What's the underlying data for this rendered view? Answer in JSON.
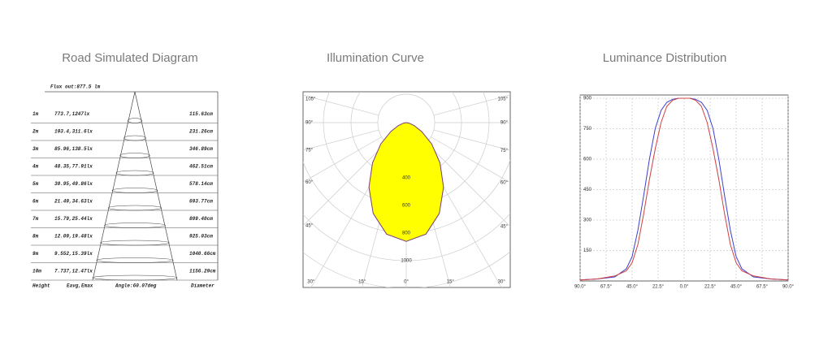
{
  "road": {
    "title": "Road Simulated Diagram",
    "flux": "Flux out:877.5 lm",
    "rows": [
      [
        "1m",
        "773.7,1247lx",
        "115.63cm"
      ],
      [
        "2m",
        "193.4,311.6lx",
        "231.26cm"
      ],
      [
        "3m",
        "85.96,138.5lx",
        "346.89cm"
      ],
      [
        "4m",
        "48.35,77.91lx",
        "462.51cm"
      ],
      [
        "5m",
        "30.95,49.86lx",
        "578.14cm"
      ],
      [
        "6m",
        "21.49,34.63lx",
        "693.77cm"
      ],
      [
        "7m",
        "15.79,25.44lx",
        "809.40cm"
      ],
      [
        "8m",
        "12.09,19.48lx",
        "925.03cm"
      ],
      [
        "9m",
        "9.552,15.39lx",
        "1040.66cm"
      ],
      [
        "10m",
        "7.737,12.47lx",
        "1156.29cm"
      ]
    ],
    "footer": [
      "Height",
      "Eavg,Emax",
      "Angle:60.07deg",
      "Diameter"
    ]
  },
  "polar": {
    "title": "Illumination Curve",
    "rlim": [
      0,
      1200
    ],
    "left_labels": [
      {
        "value": 105,
        "label": "105°"
      },
      {
        "value": 90,
        "label": "90°"
      },
      {
        "value": 75,
        "label": "75°"
      },
      {
        "value": 60,
        "label": "60°"
      },
      {
        "value": 45,
        "label": "45°"
      }
    ],
    "right_labels": [
      {
        "value": 105,
        "label": "105°"
      },
      {
        "value": 90,
        "label": "90°"
      },
      {
        "value": 75,
        "label": "75°"
      },
      {
        "value": 60,
        "label": "60°"
      },
      {
        "value": 45,
        "label": "45°"
      }
    ],
    "bottom_labels": [
      {
        "value": 30,
        "label": "30°"
      },
      {
        "value": 15,
        "label": "15°"
      },
      {
        "value": 0,
        "label": "0°"
      },
      {
        "value": 15,
        "label": "15°"
      },
      {
        "value": 30,
        "label": "30°"
      }
    ],
    "rticks": [
      400,
      600,
      800,
      1000
    ],
    "curve": {
      "color": "#ffff00",
      "angles": [
        -90,
        -80,
        -70,
        -60,
        -50,
        -40,
        -30,
        -20,
        -10,
        0,
        10,
        20,
        30,
        40,
        50,
        60,
        70,
        80,
        90
      ],
      "values": [
        0,
        20,
        60,
        130,
        240,
        380,
        540,
        700,
        820,
        860,
        820,
        700,
        540,
        380,
        240,
        130,
        60,
        20,
        0
      ]
    }
  },
  "luminance": {
    "title": "Luminance Distribution",
    "xlim": [
      -90,
      90
    ],
    "ylim": [
      0,
      900
    ],
    "xticks": [
      {
        "value": -90,
        "label": "90.0°"
      },
      {
        "value": -67.5,
        "label": "67.5°"
      },
      {
        "value": -45,
        "label": "45.0°"
      },
      {
        "value": -22.5,
        "label": "22.5°"
      },
      {
        "value": 0,
        "label": "0.0°"
      },
      {
        "value": 22.5,
        "label": "22.5°"
      },
      {
        "value": 45,
        "label": "45.0°"
      },
      {
        "value": 67.5,
        "label": "67.5°"
      },
      {
        "value": 90,
        "label": "90.0°"
      }
    ],
    "yticks": [
      150,
      300,
      450,
      600,
      750,
      900
    ],
    "x": [
      -90,
      -75,
      -60,
      -50,
      -45,
      -40,
      -35,
      -30,
      -25,
      -20,
      -15,
      -10,
      -5,
      0,
      5,
      10,
      15,
      20,
      25,
      30,
      35,
      40,
      45,
      50,
      60,
      75,
      90
    ],
    "series": [
      {
        "color": "#4040d0",
        "values": [
          5,
          10,
          20,
          60,
          120,
          250,
          420,
          600,
          750,
          840,
          880,
          895,
          900,
          900,
          900,
          895,
          880,
          840,
          750,
          600,
          420,
          250,
          120,
          60,
          20,
          10,
          5
        ]
      },
      {
        "color": "#d04040",
        "values": [
          5,
          10,
          25,
          50,
          90,
          180,
          330,
          500,
          650,
          780,
          860,
          890,
          900,
          900,
          900,
          890,
          860,
          780,
          650,
          500,
          330,
          180,
          90,
          50,
          25,
          10,
          5
        ]
      }
    ]
  }
}
